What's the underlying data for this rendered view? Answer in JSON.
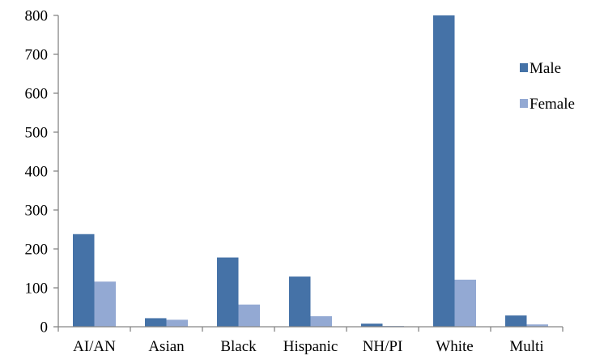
{
  "colors": {
    "male": "#4572A7",
    "female": "#93A9D3",
    "axis": "#868686"
  },
  "chart_data": {
    "type": "bar",
    "title": "",
    "xlabel": "",
    "ylabel": "",
    "categories": [
      "AI/AN",
      "Asian",
      "Black",
      "Hispanic",
      "NH/PI",
      "White",
      "Multi"
    ],
    "series": [
      {
        "name": "Male",
        "color": "#4572A7",
        "values": [
          238,
          22,
          178,
          129,
          8,
          800,
          29
        ]
      },
      {
        "name": "Female",
        "color": "#93A9D3",
        "values": [
          116,
          18,
          57,
          27,
          2,
          121,
          6
        ]
      }
    ],
    "ylim": [
      0,
      800
    ],
    "yticks": [
      0,
      100,
      200,
      300,
      400,
      500,
      600,
      700,
      800
    ],
    "grid": false,
    "legend_position": "right"
  }
}
